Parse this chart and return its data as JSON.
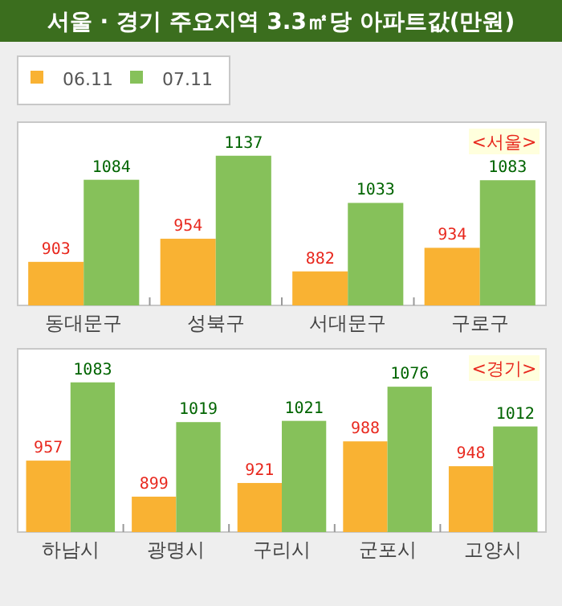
{
  "chart_data": [
    {
      "type": "bar",
      "title": "서울 · 경기 주요지역 3.3㎡당 아파트값(만원)",
      "categories": [
        "동대문구",
        "성북구",
        "서대문구",
        "구로구"
      ],
      "series": [
        {
          "name": "06.11",
          "color": "#f9b233",
          "values": [
            903,
            954,
            882,
            934
          ]
        },
        {
          "name": "07.11",
          "color": "#86c15a",
          "values": [
            1084,
            1137,
            1033,
            1083
          ]
        }
      ],
      "ylim": [
        807,
        1211
      ],
      "data_labels": true,
      "tick_labels": "x",
      "legend": "top left",
      "annotations": [
        "<서울>"
      ]
    },
    {
      "type": "bar",
      "categories": [
        "하남시",
        "광명시",
        "구리시",
        "군포시",
        "고양시"
      ],
      "series": [
        {
          "color": "#f9b233",
          "values": [
            957,
            899,
            921,
            988,
            948
          ]
        },
        {
          "color": "#86c15a",
          "values": [
            1083,
            1019,
            1021,
            1076,
            1012
          ]
        }
      ],
      "ylim": [
        842,
        1137
      ],
      "data_labels": true,
      "tick_labels": "x",
      "annotations": [
        "<경기>"
      ]
    }
  ]
}
